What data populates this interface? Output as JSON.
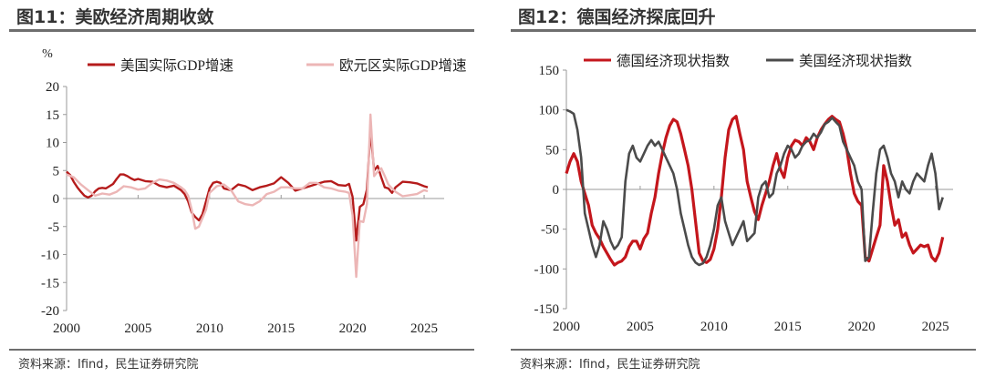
{
  "figures": [
    {
      "title": "图11：美欧经济周期收敛",
      "source": "资料来源：Ifind，民生证券研究院",
      "chart_data": {
        "type": "line",
        "title": "图11：美欧经济周期收敛",
        "unit_label": "%",
        "xlabel": "",
        "ylabel": "",
        "xlim": [
          2000,
          2026.4
        ],
        "ylim": [
          -20,
          20
        ],
        "x_ticks": [
          2000,
          2005,
          2010,
          2015,
          2020,
          2025
        ],
        "y_ticks": [
          -20,
          -15,
          -10,
          -5,
          0,
          5,
          10,
          15,
          20
        ],
        "grid": false,
        "legend_position": "top",
        "series": [
          {
            "name": "美国实际GDP增速",
            "color": "#b51b1b",
            "x": [
              2000,
              2000.25,
              2000.5,
              2000.75,
              2001,
              2001.25,
              2001.5,
              2001.75,
              2002,
              2002.25,
              2002.5,
              2002.75,
              2003,
              2003.25,
              2003.5,
              2003.75,
              2004,
              2004.25,
              2004.5,
              2004.75,
              2005,
              2005.5,
              2006,
              2006.5,
              2007,
              2007.5,
              2008,
              2008.25,
              2008.5,
              2008.75,
              2009,
              2009.25,
              2009.5,
              2009.75,
              2010,
              2010.25,
              2010.5,
              2010.75,
              2011,
              2011.5,
              2012,
              2012.5,
              2013,
              2013.5,
              2014,
              2014.5,
              2015,
              2015.5,
              2016,
              2016.5,
              2017,
              2017.5,
              2018,
              2018.5,
              2019,
              2019.5,
              2019.75,
              2020,
              2020.25,
              2020.5,
              2020.75,
              2021,
              2021.25,
              2021.5,
              2021.75,
              2022,
              2022.25,
              2022.5,
              2022.75,
              2023,
              2023.5,
              2024,
              2024.5,
              2025,
              2025.25
            ],
            "values": [
              4.8,
              4.2,
              3.0,
              2.0,
              1.2,
              0.5,
              0.2,
              0.5,
              1.3,
              1.8,
              1.9,
              1.8,
              2.2,
              2.6,
              3.5,
              4.3,
              4.3,
              4.0,
              3.6,
              3.3,
              3.5,
              3.1,
              3.0,
              2.3,
              2.0,
              2.3,
              1.5,
              0.8,
              -0.5,
              -2.5,
              -3.3,
              -3.9,
              -2.8,
              -0.5,
              1.8,
              2.8,
              3.0,
              2.8,
              1.8,
              1.5,
              2.5,
              2.2,
              1.5,
              2.0,
              2.3,
              2.7,
              3.8,
              2.8,
              1.4,
              1.8,
              2.2,
              2.6,
              3.0,
              3.1,
              2.4,
              2.3,
              2.6,
              0.3,
              -7.5,
              -1.5,
              -1.0,
              1.6,
              12.2,
              5.0,
              5.8,
              3.8,
              2.0,
              1.8,
              1.0,
              2.0,
              3.0,
              2.9,
              2.7,
              2.2,
              2.0
            ]
          },
          {
            "name": "欧元区实际GDP增速",
            "color": "#ecb6b6",
            "x": [
              2000,
              2000.5,
              2001,
              2001.5,
              2002,
              2002.5,
              2003,
              2003.5,
              2004,
              2004.5,
              2005,
              2005.5,
              2006,
              2006.5,
              2007,
              2007.5,
              2008,
              2008.25,
              2008.5,
              2008.75,
              2009,
              2009.25,
              2009.5,
              2009.75,
              2010,
              2010.5,
              2011,
              2011.5,
              2012,
              2012.5,
              2013,
              2013.5,
              2014,
              2014.5,
              2015,
              2015.5,
              2016,
              2016.5,
              2017,
              2017.5,
              2018,
              2018.5,
              2019,
              2019.5,
              2019.75,
              2020,
              2020.25,
              2020.5,
              2020.75,
              2021,
              2021.25,
              2021.5,
              2021.75,
              2022,
              2022.25,
              2022.5,
              2022.75,
              2023,
              2023.5,
              2024,
              2024.5,
              2025,
              2025.25
            ],
            "values": [
              4.3,
              3.8,
              2.5,
              1.5,
              0.5,
              0.9,
              0.7,
              1.2,
              2.2,
              2.0,
              1.6,
              1.8,
              2.8,
              3.4,
              3.2,
              2.8,
              2.0,
              1.5,
              0.5,
              -2.0,
              -5.4,
              -5.0,
              -3.5,
              -2.0,
              1.0,
              2.2,
              2.5,
              1.5,
              -0.5,
              -1.0,
              -1.2,
              -0.5,
              0.8,
              1.2,
              2.0,
              2.0,
              1.8,
              1.8,
              2.8,
              2.8,
              2.0,
              1.8,
              1.4,
              1.2,
              1.0,
              -3.0,
              -14.0,
              -4.0,
              -4.2,
              -1.0,
              15.0,
              4.0,
              4.8,
              5.4,
              4.0,
              2.5,
              1.8,
              1.2,
              0.4,
              0.6,
              0.8,
              1.5,
              1.3
            ]
          }
        ]
      }
    },
    {
      "title": "图12：德国经济探底回升",
      "source": "资料来源：Ifind，民生证券研究院",
      "chart_data": {
        "type": "line",
        "title": "图12：德国经济探底回升",
        "xlabel": "",
        "ylabel": "",
        "xlim": [
          2000,
          2026.2
        ],
        "ylim": [
          -150,
          150
        ],
        "x_ticks": [
          2000,
          2005,
          2010,
          2015,
          2020,
          2025
        ],
        "y_ticks": [
          -150,
          -100,
          -50,
          0,
          50,
          100,
          150
        ],
        "grid": false,
        "legend_position": "top",
        "series": [
          {
            "name": "德国经济现状指数",
            "color": "#c4161c",
            "x": [
              2000,
              2000.25,
              2000.5,
              2000.75,
              2001,
              2001.25,
              2001.5,
              2001.75,
              2002,
              2002.25,
              2002.5,
              2002.75,
              2003,
              2003.25,
              2003.5,
              2003.75,
              2004,
              2004.25,
              2004.5,
              2004.75,
              2005,
              2005.25,
              2005.5,
              2005.75,
              2006,
              2006.25,
              2006.5,
              2006.75,
              2007,
              2007.25,
              2007.5,
              2007.75,
              2008,
              2008.25,
              2008.5,
              2008.75,
              2009,
              2009.25,
              2009.5,
              2009.75,
              2010,
              2010.25,
              2010.5,
              2010.75,
              2011,
              2011.25,
              2011.5,
              2011.75,
              2012,
              2012.25,
              2012.5,
              2012.75,
              2013,
              2013.25,
              2013.5,
              2013.75,
              2014,
              2014.25,
              2014.5,
              2014.75,
              2015,
              2015.25,
              2015.5,
              2015.75,
              2016,
              2016.25,
              2016.5,
              2016.75,
              2017,
              2017.25,
              2017.5,
              2017.75,
              2018,
              2018.25,
              2018.5,
              2018.75,
              2019,
              2019.25,
              2019.5,
              2019.75,
              2020,
              2020.25,
              2020.5,
              2020.75,
              2021,
              2021.25,
              2021.5,
              2021.75,
              2022,
              2022.25,
              2022.5,
              2022.75,
              2023,
              2023.25,
              2023.5,
              2023.75,
              2024,
              2024.25,
              2024.5,
              2024.75,
              2025,
              2025.25,
              2025.5
            ],
            "values": [
              20,
              35,
              45,
              35,
              10,
              -5,
              -20,
              -45,
              -55,
              -62,
              -72,
              -80,
              -88,
              -95,
              -92,
              -90,
              -85,
              -72,
              -65,
              -65,
              -75,
              -62,
              -55,
              -30,
              -10,
              20,
              45,
              65,
              80,
              88,
              85,
              70,
              50,
              30,
              0,
              -40,
              -80,
              -90,
              -92,
              -88,
              -75,
              -50,
              -10,
              40,
              75,
              88,
              92,
              70,
              50,
              10,
              -10,
              -28,
              -38,
              -20,
              -5,
              10,
              30,
              45,
              25,
              15,
              40,
              55,
              62,
              60,
              55,
              65,
              60,
              50,
              65,
              75,
              82,
              88,
              92,
              88,
              85,
              70,
              50,
              20,
              -5,
              -15,
              -20,
              -85,
              -90,
              -75,
              -60,
              -45,
              30,
              10,
              -20,
              -45,
              -38,
              -60,
              -55,
              -70,
              -80,
              -75,
              -70,
              -72,
              -70,
              -85,
              -90,
              -80,
              -60
            ]
          },
          {
            "name": "美国经济现状指数",
            "color": "#4b4b4b",
            "x": [
              2000,
              2000.25,
              2000.5,
              2000.75,
              2001,
              2001.25,
              2001.5,
              2001.75,
              2002,
              2002.25,
              2002.5,
              2002.75,
              2003,
              2003.25,
              2003.5,
              2003.75,
              2004,
              2004.25,
              2004.5,
              2004.75,
              2005,
              2005.25,
              2005.5,
              2005.75,
              2006,
              2006.25,
              2006.5,
              2006.75,
              2007,
              2007.25,
              2007.5,
              2007.75,
              2008,
              2008.25,
              2008.5,
              2008.75,
              2009,
              2009.25,
              2009.5,
              2009.75,
              2010,
              2010.25,
              2010.5,
              2010.75,
              2011,
              2011.25,
              2011.5,
              2011.75,
              2012,
              2012.25,
              2012.5,
              2012.75,
              2013,
              2013.25,
              2013.5,
              2013.75,
              2014,
              2014.25,
              2014.5,
              2014.75,
              2015,
              2015.25,
              2015.5,
              2015.75,
              2016,
              2016.25,
              2016.5,
              2016.75,
              2017,
              2017.25,
              2017.5,
              2017.75,
              2018,
              2018.25,
              2018.5,
              2018.75,
              2019,
              2019.25,
              2019.5,
              2019.75,
              2020,
              2020.25,
              2020.5,
              2020.75,
              2021,
              2021.25,
              2021.5,
              2021.75,
              2022,
              2022.25,
              2022.5,
              2022.75,
              2023,
              2023.25,
              2023.5,
              2023.75,
              2024,
              2024.25,
              2024.5,
              2024.75,
              2025,
              2025.25,
              2025.5
            ],
            "values": [
              100,
              98,
              95,
              75,
              40,
              -30,
              -50,
              -70,
              -85,
              -70,
              -40,
              -50,
              -65,
              -75,
              -70,
              -60,
              10,
              45,
              55,
              40,
              35,
              45,
              55,
              62,
              55,
              60,
              50,
              40,
              30,
              20,
              0,
              -30,
              -50,
              -70,
              -85,
              -92,
              -95,
              -93,
              -85,
              -70,
              -50,
              -20,
              -10,
              -40,
              -55,
              -70,
              -60,
              -50,
              -40,
              -65,
              -60,
              -55,
              -10,
              5,
              10,
              -10,
              -5,
              20,
              30,
              45,
              55,
              50,
              40,
              45,
              55,
              60,
              62,
              70,
              65,
              72,
              82,
              85,
              90,
              85,
              80,
              60,
              50,
              40,
              30,
              10,
              0,
              -90,
              -85,
              -30,
              20,
              50,
              55,
              40,
              20,
              10,
              -10,
              10,
              0,
              -5,
              10,
              20,
              15,
              10,
              30,
              45,
              20,
              -25,
              -10
            ]
          }
        ]
      }
    }
  ]
}
